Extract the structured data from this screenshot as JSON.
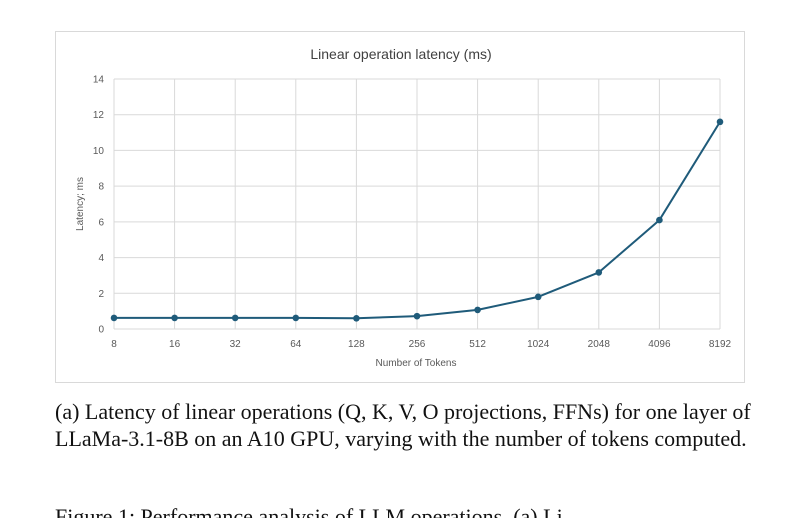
{
  "chart_data": {
    "type": "line",
    "title": "Linear operation latency (ms)",
    "xlabel": "Number of Tokens",
    "ylabel": "Latency; ms",
    "categories": [
      "8",
      "16",
      "32",
      "64",
      "128",
      "256",
      "512",
      "1024",
      "2048",
      "4096",
      "8192"
    ],
    "series": [
      {
        "values": [
          0.62,
          0.62,
          0.62,
          0.62,
          0.6,
          0.72,
          1.07,
          1.8,
          3.17,
          6.1,
          11.6
        ]
      }
    ],
    "ylim": [
      0,
      14
    ],
    "yticks": [
      "0",
      "2",
      "4",
      "6",
      "8",
      "10",
      "12",
      "14"
    ],
    "grid": true,
    "legend": "none",
    "colors": {
      "line": "#1f5b7a",
      "grid": "#d9d9d9",
      "axis_text": "#595959"
    }
  },
  "caption": {
    "text": "(a) Latency of linear operations (Q, K, V, O projections, FFNs) for one layer of LLaMa-3.1-8B on an A10 GPU, varying with the number of tokens computed."
  },
  "cut_off_text": "Figure 1: Performance analysis of LLM operations. (a) Li"
}
